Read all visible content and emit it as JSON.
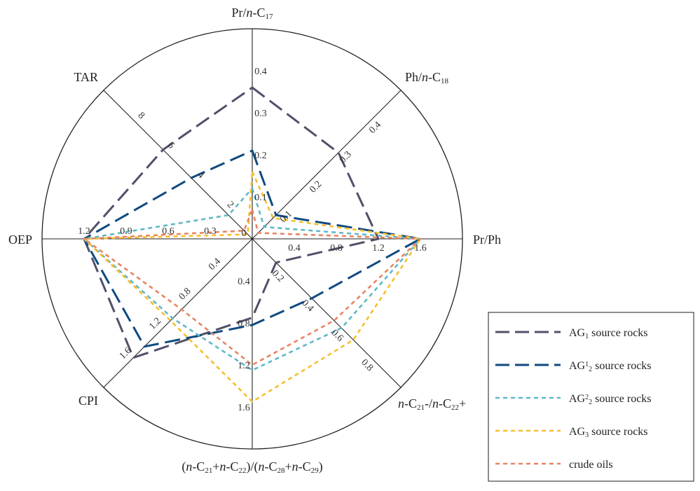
{
  "chart_data": {
    "type": "radar",
    "axes": [
      {
        "label": "Pr/n-C17",
        "label_parts": [
          [
            "Pr/",
            ""
          ],
          [
            "n",
            "i"
          ],
          [
            "-C",
            ""
          ],
          [
            "17",
            "sub"
          ]
        ],
        "max": 0.5,
        "ticks": [
          "0.1",
          "0.2",
          "0.3",
          "0.4"
        ],
        "tick_values": [
          0.1,
          0.2,
          0.3,
          0.4
        ]
      },
      {
        "label": "Ph/n-C18",
        "label_parts": [
          [
            "Ph/",
            ""
          ],
          [
            "n",
            "i"
          ],
          [
            "-C",
            ""
          ],
          [
            "18",
            "sub"
          ]
        ],
        "max": 0.5,
        "ticks": [
          "0.1",
          "0.2",
          "0.3",
          "0.4"
        ],
        "tick_values": [
          0.1,
          0.2,
          0.3,
          0.4
        ]
      },
      {
        "label": "Pr/Ph",
        "label_parts": [
          [
            "Pr/Ph",
            ""
          ]
        ],
        "max": 2.0,
        "ticks": [
          "0.4",
          "0.8",
          "1.2",
          "1.6"
        ],
        "tick_values": [
          0.4,
          0.8,
          1.2,
          1.6
        ]
      },
      {
        "label": "n-C21-/n-C22+",
        "label_parts": [
          [
            "n",
            "i"
          ],
          [
            "-C",
            ""
          ],
          [
            "21",
            "sub"
          ],
          [
            "-/",
            ""
          ],
          [
            "n",
            "i"
          ],
          [
            "-C",
            ""
          ],
          [
            "22",
            "sub"
          ],
          [
            "+",
            ""
          ]
        ],
        "max": 1.0,
        "ticks": [
          "0.2",
          "0.4",
          "0.6",
          "0.8"
        ],
        "tick_values": [
          0.2,
          0.4,
          0.6,
          0.8
        ]
      },
      {
        "label": "(n-C21+n-C22)/(n-C28+n-C29)",
        "label_parts": [
          [
            "(",
            ""
          ],
          [
            "n",
            "i"
          ],
          [
            "-C",
            ""
          ],
          [
            "21",
            "sub"
          ],
          [
            "+",
            ""
          ],
          [
            "n",
            "i"
          ],
          [
            "-C",
            ""
          ],
          [
            "22",
            "sub"
          ],
          [
            ")/(",
            ""
          ],
          [
            "n",
            "i"
          ],
          [
            "-C",
            ""
          ],
          [
            "28",
            "sub"
          ],
          [
            "+",
            ""
          ],
          [
            "n",
            "i"
          ],
          [
            "-C",
            ""
          ],
          [
            "29",
            "sub"
          ],
          [
            ")",
            ""
          ]
        ],
        "max": 2.0,
        "ticks": [
          "0.4",
          "0.8",
          "1.2",
          "1.6"
        ],
        "tick_values": [
          0.4,
          0.8,
          1.2,
          1.6
        ]
      },
      {
        "label": "CPI",
        "label_parts": [
          [
            "CPI",
            ""
          ]
        ],
        "max": 2.0,
        "ticks": [
          "0.4",
          "0.8",
          "1.2",
          "1.6"
        ],
        "tick_values": [
          0.4,
          0.8,
          1.2,
          1.6
        ]
      },
      {
        "label": "OEP",
        "label_parts": [
          [
            "OEP",
            ""
          ]
        ],
        "max": 1.5,
        "ticks": [
          "0.3",
          "0.6",
          "0.9",
          "1.2"
        ],
        "tick_values": [
          0.3,
          0.6,
          0.9,
          1.2
        ]
      },
      {
        "label": "TAR",
        "label_parts": [
          [
            "TAR",
            ""
          ]
        ],
        "max": 10,
        "ticks": [
          "2",
          "4",
          "6",
          "8"
        ],
        "tick_values": [
          2,
          4,
          6,
          8
        ]
      }
    ],
    "center_label": "0",
    "series": [
      {
        "name": "AG1 source rocks",
        "name_parts": [
          [
            "AG",
            ""
          ],
          [
            "1",
            "sub"
          ],
          [
            " source rocks",
            ""
          ]
        ],
        "color": "#50506a",
        "dash": "long",
        "values": [
          0.36,
          0.29,
          1.2,
          0.16,
          0.75,
          1.6,
          1.2,
          6.0
        ]
      },
      {
        "name": "AG2 1 source rocks",
        "name_parts": [
          [
            "AG",
            ""
          ],
          [
            "1",
            "sup"
          ],
          [
            "2",
            "sub"
          ],
          [
            " source rocks",
            ""
          ]
        ],
        "color": "#0f4a80",
        "dash": "long",
        "values": [
          0.21,
          0.08,
          1.6,
          0.4,
          0.82,
          1.45,
          1.2,
          4.1
        ]
      },
      {
        "name": "AG2 2 source rocks",
        "name_parts": [
          [
            "AG",
            ""
          ],
          [
            "2",
            "sup"
          ],
          [
            "2",
            "sub"
          ],
          [
            " source rocks",
            ""
          ]
        ],
        "color": "#5fb8c8",
        "dash": "short",
        "values": [
          0.12,
          0.04,
          1.6,
          0.6,
          1.25,
          1.07,
          1.2,
          1.6
        ]
      },
      {
        "name": "AG3 source rocks",
        "name_parts": [
          [
            "AG",
            ""
          ],
          [
            "3",
            "sub"
          ],
          [
            " source rocks",
            ""
          ]
        ],
        "color": "#f5bf30",
        "dash": "short",
        "values": [
          0.16,
          0.07,
          1.6,
          0.68,
          1.55,
          1.1,
          1.2,
          0.3
        ]
      },
      {
        "name": "crude oils",
        "name_parts": [
          [
            "crude oils",
            ""
          ]
        ],
        "color": "#e98462",
        "dash": "short",
        "values": [
          0.07,
          0.02,
          1.6,
          0.55,
          1.2,
          0.95,
          1.2,
          0.55
        ]
      }
    ],
    "legend_position": "bottom-right",
    "grid": true
  }
}
